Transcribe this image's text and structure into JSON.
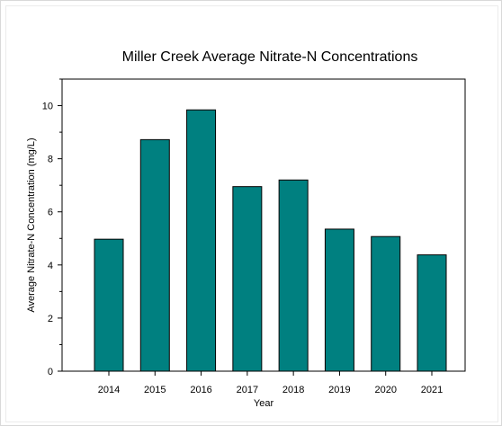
{
  "chart_data": {
    "type": "bar",
    "title": "Miller Creek Average Nitrate-N Concentrations",
    "xlabel": "Year",
    "ylabel": "Average Nitrate-N Concentration (mg/L)",
    "categories": [
      "2014",
      "2015",
      "2016",
      "2017",
      "2018",
      "2019",
      "2020",
      "2021"
    ],
    "values": [
      4.97,
      8.72,
      9.84,
      6.95,
      7.2,
      5.35,
      5.07,
      4.38
    ],
    "ylim": [
      0,
      11
    ],
    "yticks": [
      "0",
      "2",
      "4",
      "6",
      "8",
      "10"
    ],
    "grid": false,
    "legend": "none",
    "bar_color": "#008080",
    "bar_edge_color": "#000000"
  }
}
